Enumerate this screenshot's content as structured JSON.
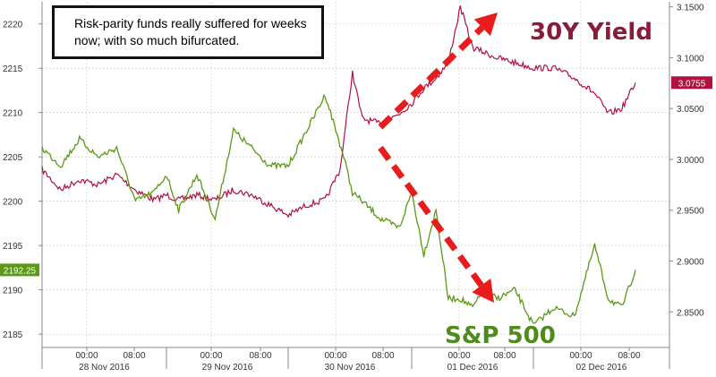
{
  "annotation": "Risk-parity funds really suffered for weeks now; with so much bifurcated.",
  "colors": {
    "spx": "#5a9a15",
    "yield": "#b0113e",
    "arrow": "#e81c1c",
    "grid": "#c8c8c8",
    "axis": "#888888"
  },
  "chart_data": {
    "type": "line",
    "title": "",
    "x_time_ticks": [
      "00:00",
      "08:00",
      "00:00",
      "08:00",
      "00:00",
      "08:00",
      "00:00",
      "08:00",
      "00:00",
      "08:00"
    ],
    "x_date_labels": [
      "28 Nov 2016",
      "29 Nov 2016",
      "30 Nov 2016",
      "01 Dec 2016",
      "02 Dec 2016"
    ],
    "y_left": {
      "ticks": [
        "2220",
        "2215",
        "2210",
        "2205",
        "2200",
        "2195",
        "2190",
        "2185"
      ],
      "range": [
        2183.5,
        2222.5
      ]
    },
    "y_right": {
      "ticks": [
        "3.1500",
        "3.1000",
        "3.0500",
        "3.0000",
        "2.9500",
        "2.9000",
        "2.8500"
      ],
      "range": [
        2.815,
        3.155
      ]
    },
    "grid": true,
    "series": [
      {
        "name": "S&P 500",
        "axis": "left",
        "last_value_tag": "2192.25",
        "x_day": [
          0.0,
          0.15,
          0.3,
          0.45,
          0.6,
          0.75,
          0.9,
          1.0,
          1.1,
          1.25,
          1.4,
          1.55,
          1.7,
          1.85,
          2.0,
          2.15,
          2.3,
          2.45,
          2.52,
          2.6,
          2.75,
          2.9,
          3.0,
          3.1,
          3.2,
          3.3,
          3.4,
          3.5,
          3.6,
          3.7,
          3.85,
          4.0,
          4.15,
          4.3,
          4.45,
          4.55,
          4.65,
          4.75
        ],
        "values": [
          2206,
          2204,
          2207,
          2205,
          2206,
          2200,
          2201,
          2203,
          2199,
          2203,
          2198,
          2208,
          2206,
          2204,
          2204,
          2208,
          2212,
          2205,
          2201,
          2200,
          2198,
          2197,
          2201,
          2194,
          2199,
          2189,
          2189,
          2188,
          2190,
          2189,
          2190,
          2186,
          2188,
          2187,
          2195,
          2189,
          2188,
          2192.25
        ]
      },
      {
        "name": "30Y Yield",
        "axis": "right",
        "last_value_tag": "3.0755",
        "x_day": [
          0.0,
          0.15,
          0.3,
          0.45,
          0.6,
          0.75,
          0.9,
          1.0,
          1.1,
          1.25,
          1.4,
          1.55,
          1.7,
          1.85,
          2.0,
          2.15,
          2.3,
          2.42,
          2.52,
          2.6,
          2.75,
          2.9,
          3.0,
          3.1,
          3.2,
          3.3,
          3.4,
          3.5,
          3.6,
          3.7,
          3.85,
          4.0,
          4.15,
          4.3,
          4.45,
          4.55,
          4.65,
          4.75
        ],
        "values": [
          2.99,
          2.97,
          2.98,
          2.975,
          2.985,
          2.97,
          2.96,
          2.965,
          2.96,
          2.965,
          2.96,
          2.97,
          2.965,
          2.955,
          2.945,
          2.955,
          2.96,
          2.99,
          3.085,
          3.04,
          3.035,
          3.045,
          3.055,
          3.07,
          3.08,
          3.095,
          3.15,
          3.11,
          3.105,
          3.1,
          3.095,
          3.09,
          3.09,
          3.08,
          3.065,
          3.045,
          3.05,
          3.0755
        ]
      }
    ]
  }
}
